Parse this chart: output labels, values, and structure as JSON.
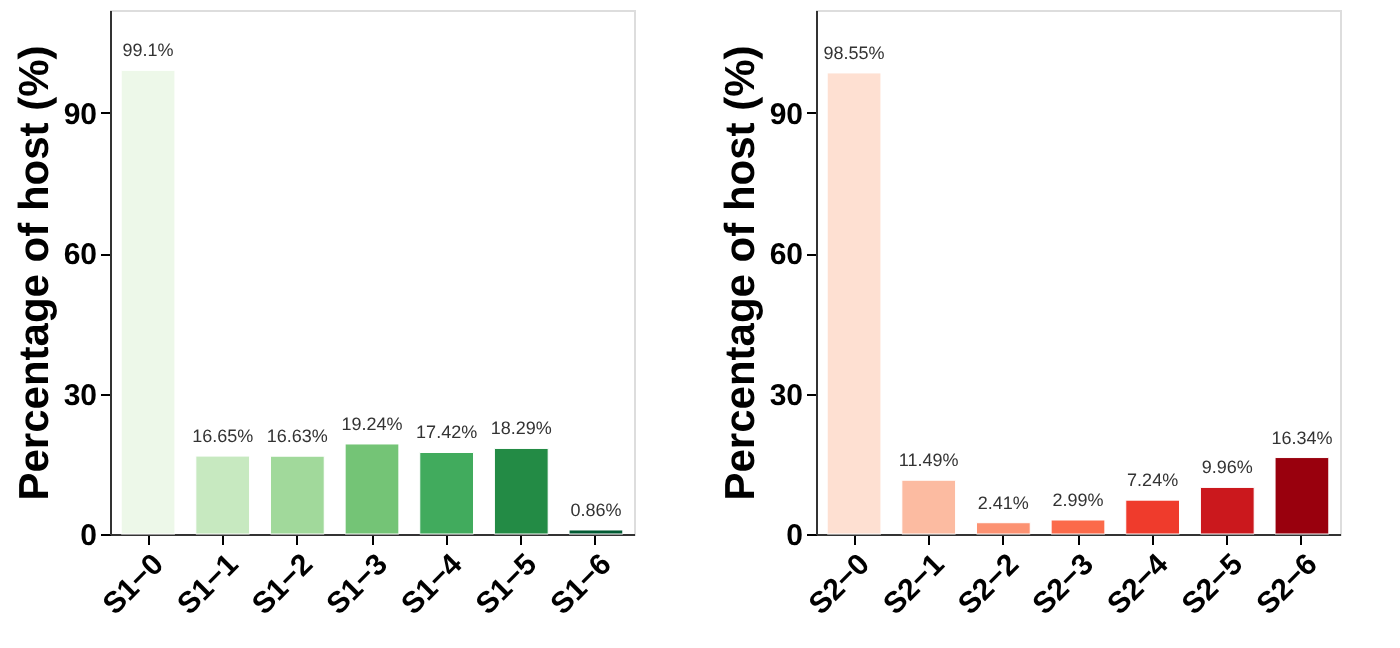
{
  "chart_data": [
    {
      "type": "bar",
      "ylabel": "Percentage of host (%)",
      "categories": [
        "S1−0",
        "S1−1",
        "S1−2",
        "S1−3",
        "S1−4",
        "S1−5",
        "S1−6"
      ],
      "values": [
        99.1,
        16.65,
        16.63,
        19.24,
        17.42,
        18.29,
        0.86
      ],
      "colors": [
        "#edf8e9",
        "#c7e9c0",
        "#a1d99b",
        "#74c476",
        "#41ab5d",
        "#238b45",
        "#005a32"
      ],
      "value_labels": [
        "99.1%",
        "16.65%",
        "16.63%",
        "19.24%",
        "17.42%",
        "18.29%",
        "0.86%"
      ],
      "ylim": [
        0,
        112
      ],
      "yticks": [
        0,
        30,
        60,
        90
      ],
      "grid": false
    },
    {
      "type": "bar",
      "ylabel": "Percentage of host (%)",
      "categories": [
        "S2−0",
        "S2−1",
        "S2−2",
        "S2−3",
        "S2−4",
        "S2−5",
        "S2−6"
      ],
      "values": [
        98.55,
        11.49,
        2.41,
        2.99,
        7.24,
        9.96,
        16.34
      ],
      "colors": [
        "#fee0d2",
        "#fcbba1",
        "#fc9272",
        "#fb6a4a",
        "#ef3b2c",
        "#cb181d",
        "#99000d"
      ],
      "value_labels": [
        "98.55%",
        "11.49%",
        "2.41%",
        "2.99%",
        "7.24%",
        "9.96%",
        "16.34%"
      ],
      "ylim": [
        0,
        112
      ],
      "yticks": [
        0,
        30,
        60,
        90
      ],
      "grid": false
    }
  ]
}
